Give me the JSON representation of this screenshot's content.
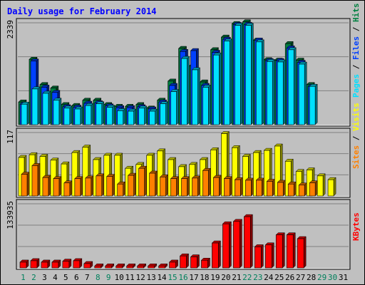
{
  "chart_data": [
    {
      "type": "bar",
      "title": "Daily usage for February 2014",
      "panel": "hits-files-pages",
      "y_max_label": "2339",
      "ylim": [
        0,
        2339
      ],
      "grid": true,
      "legend": [
        {
          "name": "Pages",
          "color": "#00E0FF"
        },
        {
          "name": "Files",
          "color": "#0040FF"
        },
        {
          "name": "Hits",
          "color": "#008040"
        }
      ],
      "legend_separator": " / ",
      "x": [
        "1",
        "2",
        "3",
        "4",
        "5",
        "6",
        "7",
        "8",
        "9",
        "10",
        "11",
        "12",
        "13",
        "14",
        "15",
        "16",
        "17",
        "18",
        "19",
        "20",
        "21",
        "22",
        "23",
        "24",
        "25",
        "26",
        "27",
        "28",
        "29",
        "30",
        "31"
      ],
      "series": [
        {
          "name": "Hits",
          "values": [
            520,
            1500,
            920,
            840,
            460,
            440,
            560,
            560,
            460,
            420,
            420,
            460,
            380,
            560,
            1000,
            1750,
            1350,
            980,
            1720,
            2010,
            2320,
            2360,
            1940,
            1490,
            1480,
            1860,
            1480,
            920,
            0,
            0,
            0
          ]
        },
        {
          "name": "Files",
          "values": [
            470,
            1460,
            860,
            740,
            410,
            400,
            490,
            500,
            430,
            390,
            390,
            410,
            360,
            520,
            900,
            1680,
            1700,
            900,
            1660,
            1960,
            2300,
            2300,
            1940,
            1470,
            1470,
            1760,
            1430,
            880,
            0,
            0,
            0
          ]
        },
        {
          "name": "Pages",
          "values": [
            470,
            820,
            720,
            560,
            380,
            360,
            440,
            480,
            400,
            320,
            310,
            380,
            310,
            480,
            760,
            1520,
            1260,
            860,
            1600,
            1920,
            2280,
            2280,
            1900,
            1450,
            1440,
            1720,
            1390,
            880,
            0,
            0,
            0
          ]
        }
      ]
    },
    {
      "type": "bar",
      "panel": "visits-sites",
      "y_max_label": "117",
      "ylim": [
        0,
        117
      ],
      "grid": true,
      "legend": [
        {
          "name": "Sites",
          "color": "#FF8000"
        },
        {
          "name": "Visits",
          "color": "#FFFF00"
        }
      ],
      "legend_separator": " / ",
      "x": [
        "1",
        "2",
        "3",
        "4",
        "5",
        "6",
        "7",
        "8",
        "9",
        "10",
        "11",
        "12",
        "13",
        "14",
        "15",
        "16",
        "17",
        "18",
        "19",
        "20",
        "21",
        "22",
        "23",
        "24",
        "25",
        "26",
        "27",
        "28",
        "29",
        "30",
        "31"
      ],
      "series": [
        {
          "name": "Visits",
          "values": [
            71,
            76,
            73,
            66,
            59,
            80,
            90,
            67,
            75,
            75,
            51,
            58,
            75,
            83,
            67,
            54,
            58,
            67,
            85,
            115,
            89,
            73,
            80,
            84,
            92,
            64,
            45,
            48,
            37,
            30,
            0
          ]
        },
        {
          "name": "Sites",
          "values": [
            40,
            56,
            34,
            32,
            24,
            32,
            33,
            37,
            36,
            22,
            38,
            51,
            42,
            35,
            32,
            32,
            33,
            47,
            34,
            32,
            30,
            29,
            29,
            27,
            25,
            22,
            20,
            24,
            0,
            0,
            0
          ]
        }
      ]
    },
    {
      "type": "bar",
      "panel": "kbytes",
      "y_max_label": "133935",
      "ylim": [
        0,
        133935
      ],
      "grid": true,
      "legend": [
        {
          "name": "KBytes",
          "color": "#FF0000"
        }
      ],
      "x": [
        "1",
        "2",
        "3",
        "4",
        "5",
        "6",
        "7",
        "8",
        "9",
        "10",
        "11",
        "12",
        "13",
        "14",
        "15",
        "16",
        "17",
        "18",
        "19",
        "20",
        "21",
        "22",
        "23",
        "24",
        "25",
        "26",
        "27",
        "28",
        "29",
        "30",
        "31"
      ],
      "weekend_days": [
        "1",
        "2",
        "8",
        "9",
        "15",
        "16",
        "22",
        "23",
        "29",
        "30"
      ],
      "series": [
        {
          "name": "KBytes",
          "values": [
            12000,
            15000,
            12000,
            12000,
            14000,
            15000,
            9000,
            4000,
            4000,
            4000,
            4000,
            4000,
            4000,
            4000,
            12000,
            25000,
            23000,
            16000,
            52000,
            92000,
            97000,
            107000,
            44000,
            48000,
            69000,
            69000,
            61000,
            0,
            0,
            0,
            0
          ]
        }
      ]
    }
  ],
  "colors": {
    "background": "#C0C0C0",
    "title": "#0000FF",
    "grid": "#808080",
    "weekday_label": "#000000",
    "weekend_label": "#00805C"
  }
}
